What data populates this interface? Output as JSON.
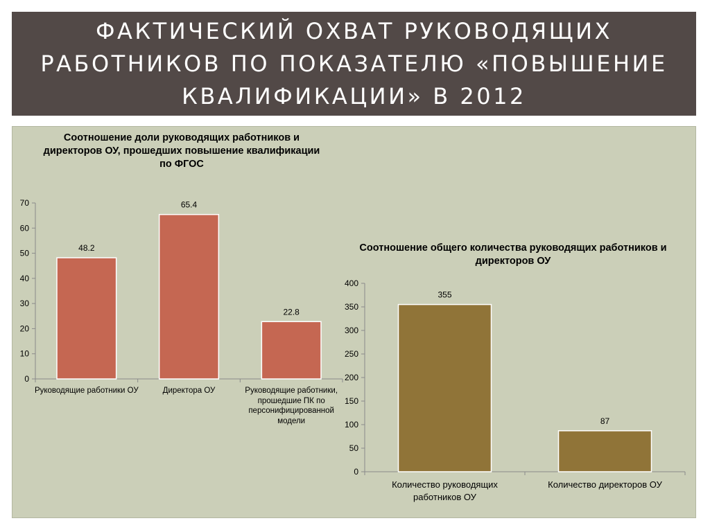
{
  "slide": {
    "title": "ФАКТИЧЕСКИЙ ОХВАТ РУКОВОДЯЩИХ РАБОТНИКОВ ПО ПОКАЗАТЕЛЮ «ПОВЫШЕНИЕ КВАЛИФИКАЦИИ» В 2012"
  },
  "colors": {
    "title_bg": "#524947",
    "panel_bg": "#cbcfb8",
    "chart1_bar": "#c56752",
    "chart2_bar": "#907438"
  },
  "chart_data": [
    {
      "type": "bar",
      "title": "Соотношение доли руководящих работников и директоров ОУ, прошедших повышение квалификации по ФГОС",
      "categories": [
        "Руководящие работники ОУ",
        "Директора ОУ",
        "Руководящие работники, прошедшие ПК по персонифицированной модели"
      ],
      "values": [
        48.2,
        65.4,
        22.8
      ],
      "data_labels": [
        "48.2",
        "65.4",
        "22.8"
      ],
      "ylim": [
        0,
        70
      ],
      "yticks": [
        0,
        10,
        20,
        30,
        40,
        50,
        60,
        70
      ],
      "grid": false,
      "legend": "none"
    },
    {
      "type": "bar",
      "title": "Соотношение общего количества руководящих работников и директоров ОУ",
      "categories": [
        "Количество руководящих работников ОУ",
        "Количество директоров ОУ"
      ],
      "values": [
        355,
        87
      ],
      "data_labels": [
        "355",
        "87"
      ],
      "ylim": [
        0,
        400
      ],
      "yticks": [
        0,
        50,
        100,
        150,
        200,
        250,
        300,
        350,
        400
      ],
      "grid": false,
      "legend": "none"
    }
  ]
}
